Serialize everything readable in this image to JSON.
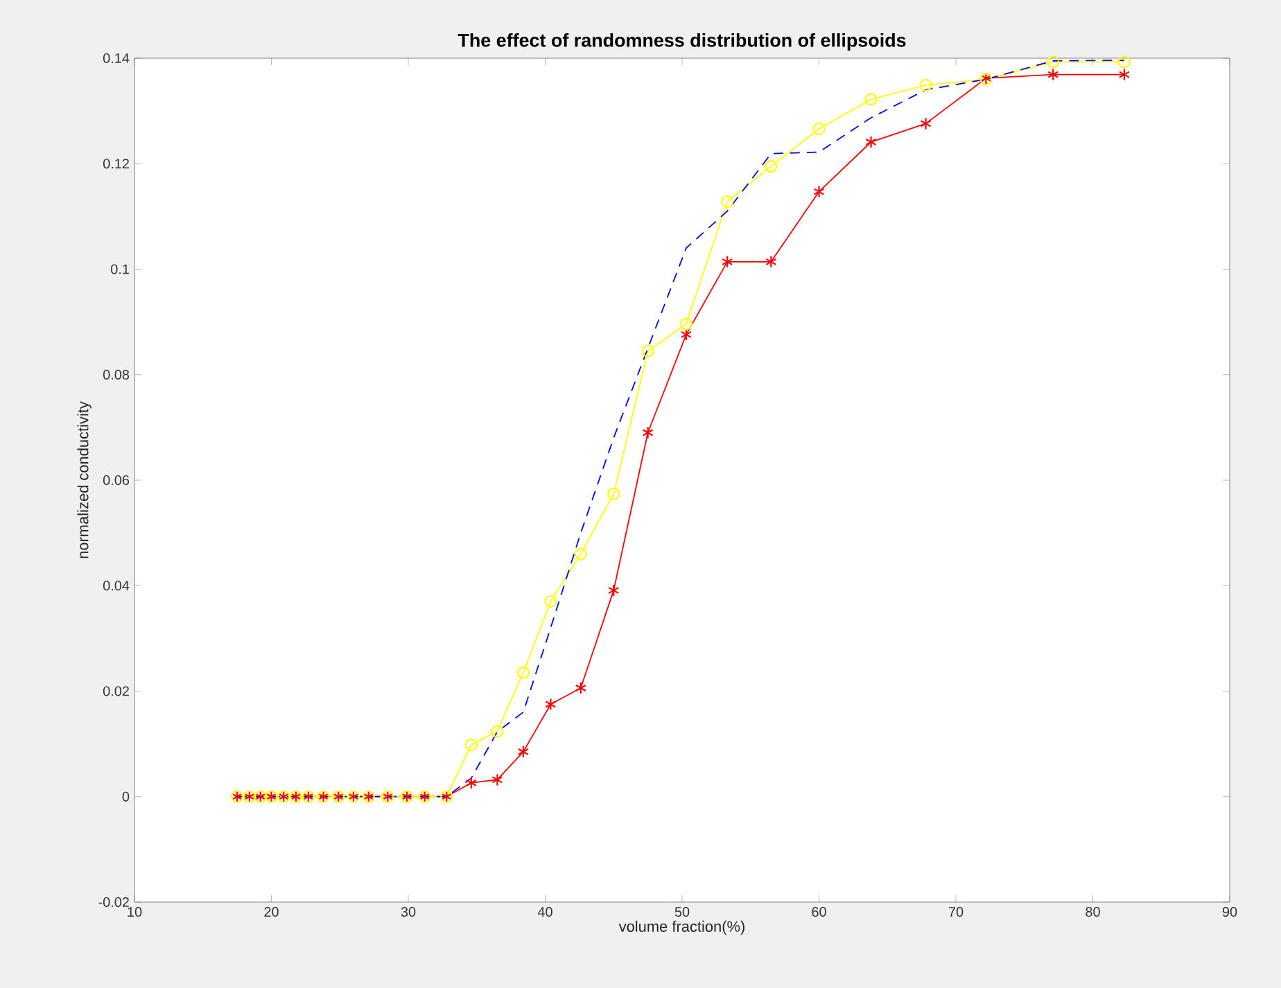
{
  "chart_data": {
    "type": "line",
    "title": "The effect of randomness distribution of ellipsoids",
    "xlabel": "volume fraction(%)",
    "ylabel": "normalized conductivity",
    "x": [
      17.5,
      18.4,
      19.2,
      20.0,
      20.9,
      21.8,
      22.7,
      23.8,
      24.9,
      26.0,
      27.1,
      28.5,
      29.9,
      31.2,
      32.8,
      34.6,
      36.5,
      38.4,
      40.4,
      42.6,
      45.0,
      47.5,
      50.3,
      53.3,
      56.5,
      60.0,
      63.8,
      67.8,
      72.2,
      77.1,
      82.3
    ],
    "series": [
      {
        "color": "#ff0000",
        "marker": "cross",
        "line_style": "solid",
        "values": [
          0,
          0,
          0,
          0,
          0,
          0,
          0,
          0,
          0,
          0,
          0,
          0,
          0,
          0,
          0,
          0.0026,
          0.0032,
          0.0085,
          0.0175,
          0.0206,
          0.0391,
          0.069,
          0.0876,
          0.1014,
          0.1014,
          0.1147,
          0.1241,
          0.1276,
          0.1362,
          0.1369,
          0.1369
        ]
      },
      {
        "color": "#ffff00",
        "marker": "circle",
        "line_style": "solid",
        "values": [
          0,
          0,
          0,
          0,
          0,
          0,
          0,
          0,
          0,
          0,
          0,
          0,
          0,
          0,
          0,
          0.0098,
          0.0124,
          0.0235,
          0.037,
          0.046,
          0.0574,
          0.0845,
          0.0896,
          0.1128,
          0.1195,
          0.1266,
          0.1322,
          0.1349,
          0.136,
          0.1393,
          0.1393
        ]
      },
      {
        "color": "#0000ff",
        "marker": "none",
        "line_style": "dashed",
        "values": [
          0,
          0,
          0,
          0,
          0,
          0,
          0,
          0,
          0,
          0,
          0,
          0,
          0,
          0,
          0,
          0.0035,
          0.0123,
          0.016,
          0.032,
          0.05,
          0.068,
          0.085,
          0.104,
          0.111,
          0.1219,
          0.1222,
          0.1287,
          0.134,
          0.136,
          0.1395,
          0.1396
        ]
      }
    ],
    "xlim": [
      10,
      90
    ],
    "ylim": [
      -0.02,
      0.14
    ],
    "xticks": [
      10,
      20,
      30,
      40,
      50,
      60,
      70,
      80,
      90
    ],
    "yticks": [
      -0.02,
      0,
      0.02,
      0.04,
      0.06,
      0.08,
      0.1,
      0.12,
      0.14
    ],
    "grid": false
  }
}
